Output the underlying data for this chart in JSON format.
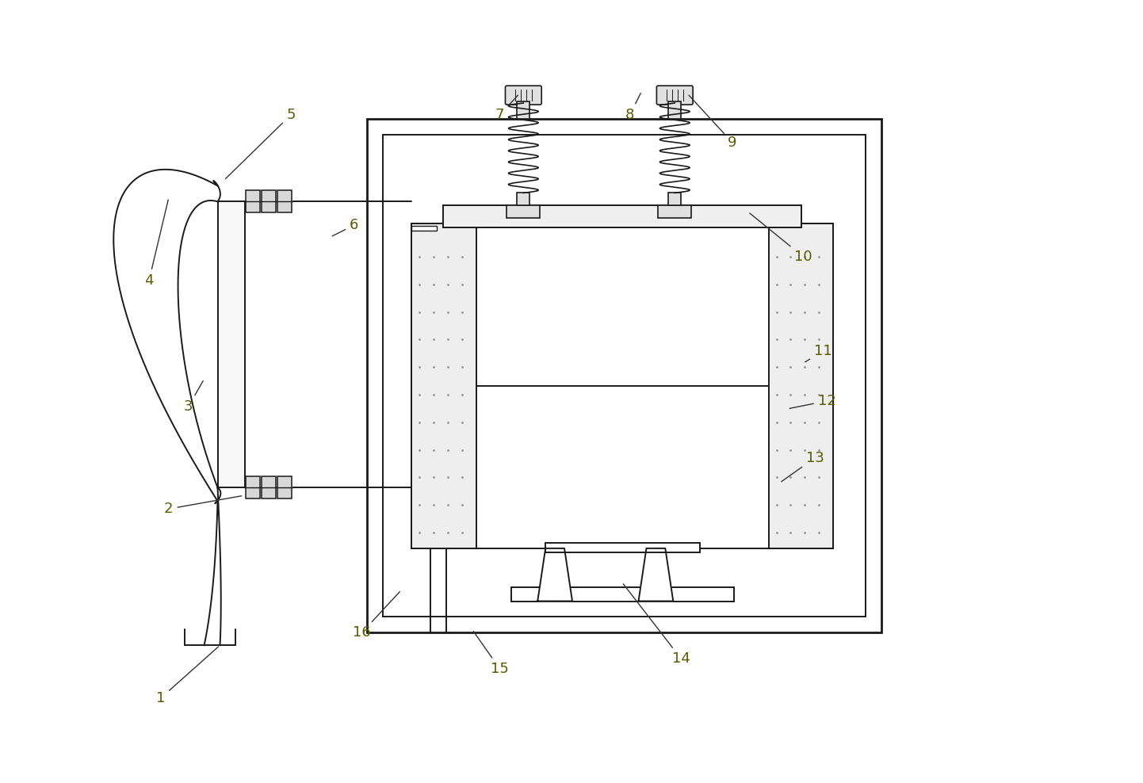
{
  "bg_color": "#ffffff",
  "line_color": "#1a1a1a",
  "label_color": "#5a5a00",
  "figsize": [
    14.42,
    9.88
  ],
  "dpi": 100,
  "labels_data": [
    [
      1,
      2.0,
      1.05,
      2.75,
      1.72
    ],
    [
      2,
      2.1,
      3.45,
      3.05,
      3.62
    ],
    [
      3,
      2.35,
      4.75,
      2.55,
      5.1
    ],
    [
      4,
      1.85,
      6.35,
      2.1,
      7.4
    ],
    [
      5,
      3.65,
      8.45,
      2.8,
      7.62
    ],
    [
      6,
      4.45,
      7.05,
      4.15,
      6.9
    ],
    [
      7,
      6.3,
      8.45,
      6.55,
      8.72
    ],
    [
      8,
      7.95,
      8.45,
      8.1,
      8.75
    ],
    [
      9,
      9.25,
      8.1,
      8.68,
      8.72
    ],
    [
      10,
      10.15,
      6.65,
      9.45,
      7.22
    ],
    [
      11,
      10.4,
      5.45,
      10.15,
      5.3
    ],
    [
      12,
      10.45,
      4.82,
      9.95,
      4.72
    ],
    [
      13,
      10.3,
      4.1,
      9.85,
      3.78
    ],
    [
      14,
      8.6,
      1.55,
      7.85,
      2.52
    ],
    [
      15,
      6.3,
      1.42,
      5.95,
      1.92
    ],
    [
      16,
      4.55,
      1.88,
      5.05,
      2.42
    ]
  ]
}
